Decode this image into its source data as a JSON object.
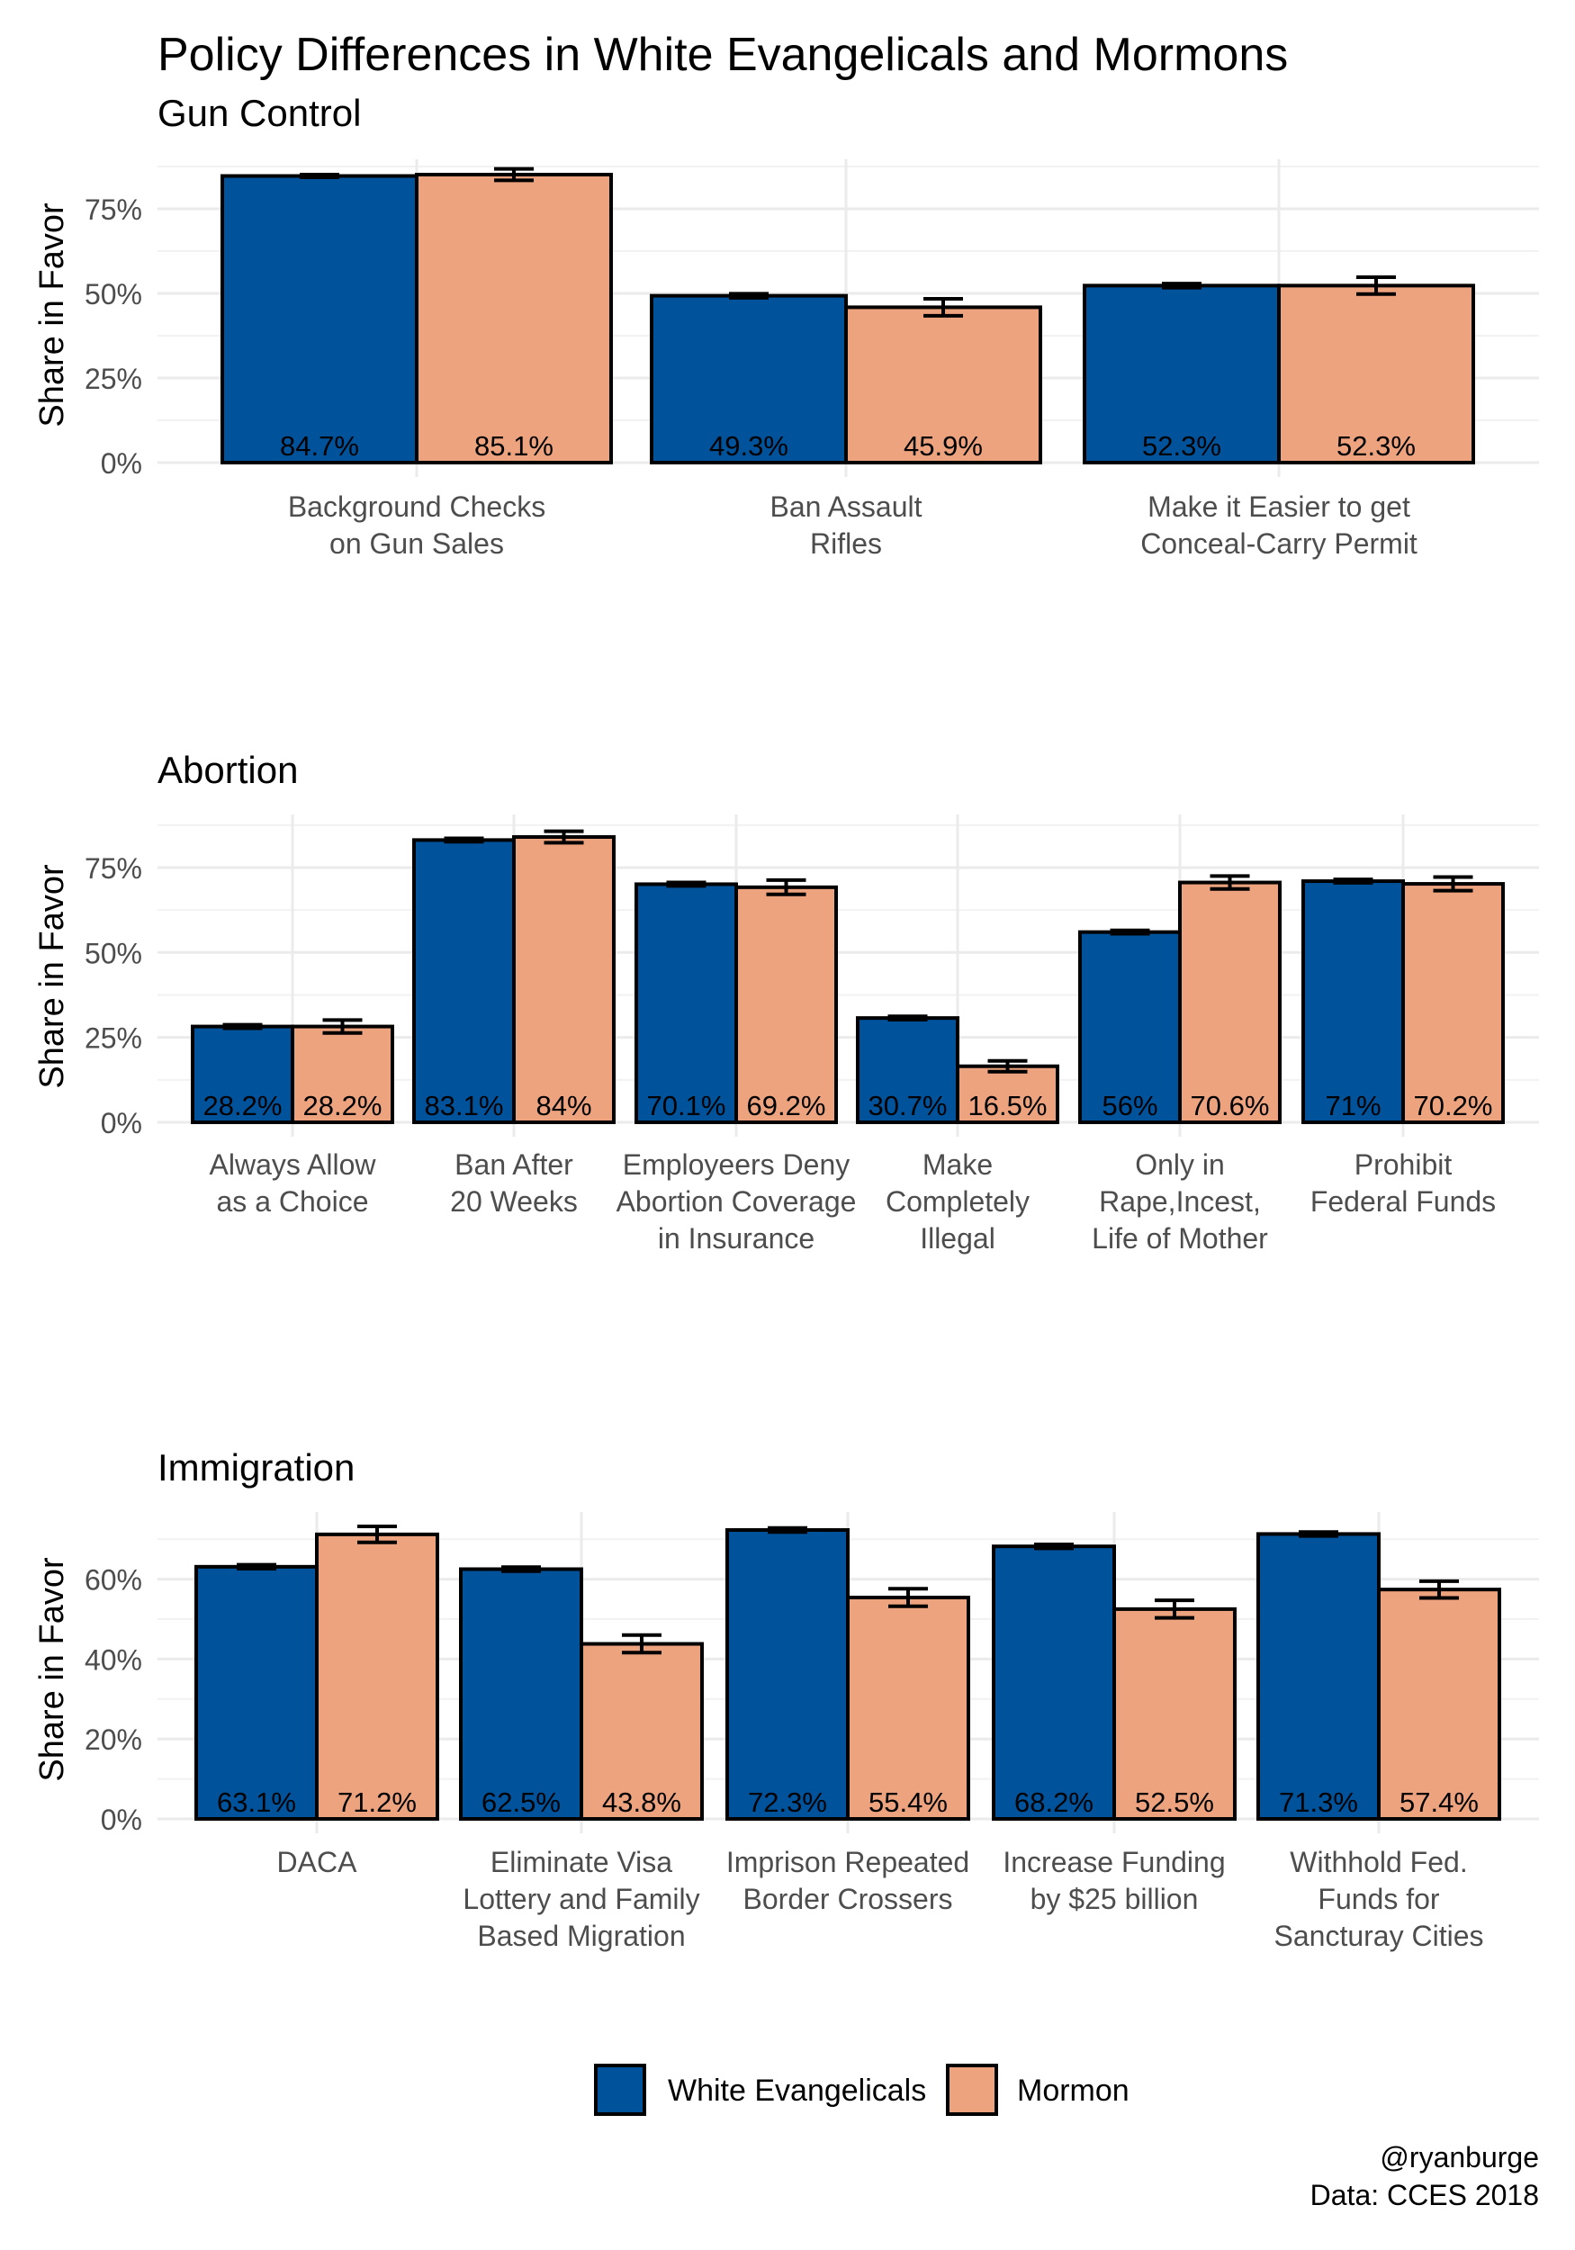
{
  "title": "Policy Differences in White Evangelicals and Mormons",
  "caption": [
    "@ryanburge",
    "Data: CCES 2018"
  ],
  "legend": [
    {
      "label": "White Evangelicals",
      "color": "#00529b"
    },
    {
      "label": "Mormon",
      "color": "#eea37f"
    }
  ],
  "chart_data": [
    {
      "type": "bar",
      "title": "Gun Control",
      "xlabel": "",
      "ylabel": "Share in Favor",
      "ylim": [
        0,
        0.875
      ],
      "yticks": [
        0,
        0.25,
        0.5,
        0.75
      ],
      "ytick_labels": [
        "0%",
        "25%",
        "50%",
        "75%"
      ],
      "grid": true,
      "legend_position": "bottom",
      "categories": [
        [
          "Background Checks",
          "on Gun Sales"
        ],
        [
          "Ban Assault",
          "Rifles"
        ],
        [
          "Make it Easier to get",
          "Conceal-Carry Permit"
        ]
      ],
      "series": [
        {
          "name": "White Evangelicals",
          "values": [
            0.847,
            0.493,
            0.523
          ],
          "labels": [
            "84.7%",
            "49.3%",
            "52.3%"
          ],
          "error": [
            0.004,
            0.006,
            0.006
          ]
        },
        {
          "name": "Mormon",
          "values": [
            0.851,
            0.459,
            0.523
          ],
          "labels": [
            "85.1%",
            "45.9%",
            "52.3%"
          ],
          "error": [
            0.017,
            0.025,
            0.025
          ]
        }
      ]
    },
    {
      "type": "bar",
      "title": "Abortion",
      "xlabel": "",
      "ylabel": "Share in Favor",
      "ylim": [
        0,
        0.885
      ],
      "yticks": [
        0,
        0.25,
        0.5,
        0.75
      ],
      "ytick_labels": [
        "0%",
        "25%",
        "50%",
        "75%"
      ],
      "grid": true,
      "legend_position": "bottom",
      "categories": [
        [
          "Always Allow",
          "as a Choice"
        ],
        [
          "Ban After",
          "20 Weeks"
        ],
        [
          "Employeers Deny",
          "Abortion Coverage",
          "in Insurance"
        ],
        [
          "Make",
          "Completely",
          "Illegal"
        ],
        [
          "Only in",
          "Rape,Incest,",
          "Life of Mother"
        ],
        [
          "Prohibit",
          "Federal Funds"
        ]
      ],
      "series": [
        {
          "name": "White Evangelicals",
          "values": [
            0.282,
            0.831,
            0.701,
            0.307,
            0.56,
            0.71
          ],
          "labels": [
            "28.2%",
            "83.1%",
            "70.1%",
            "30.7%",
            "56%",
            "71%"
          ],
          "error": [
            0.005,
            0.005,
            0.005,
            0.005,
            0.005,
            0.005
          ]
        },
        {
          "name": "Mormon",
          "values": [
            0.282,
            0.84,
            0.692,
            0.165,
            0.706,
            0.702
          ],
          "labels": [
            "28.2%",
            "84%",
            "69.2%",
            "16.5%",
            "70.6%",
            "70.2%"
          ],
          "error": [
            0.019,
            0.017,
            0.021,
            0.016,
            0.019,
            0.02
          ]
        }
      ]
    },
    {
      "type": "bar",
      "title": "Immigration",
      "xlabel": "",
      "ylabel": "Share in Favor",
      "ylim": [
        0,
        0.75
      ],
      "yticks": [
        0,
        0.2,
        0.4,
        0.6
      ],
      "ytick_labels": [
        "0%",
        "20%",
        "40%",
        "60%"
      ],
      "grid": true,
      "legend_position": "bottom",
      "categories": [
        [
          "DACA"
        ],
        [
          "Eliminate Visa",
          "Lottery and Family",
          "Based Migration"
        ],
        [
          "Imprison Repeated",
          "Border Crossers"
        ],
        [
          "Increase Funding",
          "by $25 billion"
        ],
        [
          "Withhold Fed.",
          "Funds for",
          "Sancturay Cities"
        ]
      ],
      "series": [
        {
          "name": "White Evangelicals",
          "values": [
            0.631,
            0.625,
            0.723,
            0.682,
            0.713
          ],
          "labels": [
            "63.1%",
            "62.5%",
            "72.3%",
            "68.2%",
            "71.3%"
          ],
          "error": [
            0.005,
            0.005,
            0.005,
            0.005,
            0.005
          ]
        },
        {
          "name": "Mormon",
          "values": [
            0.712,
            0.438,
            0.554,
            0.525,
            0.574
          ],
          "labels": [
            "71.2%",
            "43.8%",
            "55.4%",
            "52.5%",
            "57.4%"
          ],
          "error": [
            0.02,
            0.022,
            0.022,
            0.022,
            0.021
          ]
        }
      ]
    }
  ]
}
